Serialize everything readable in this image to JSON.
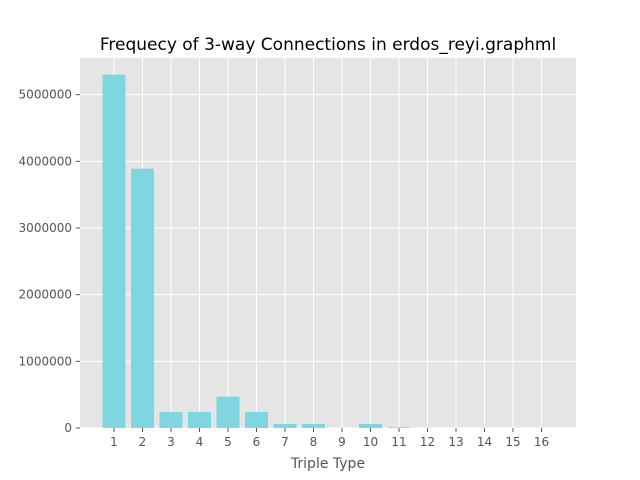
{
  "chart_data": {
    "type": "bar",
    "title": "Frequecy of 3-way Connections in erdos_reyi.graphml",
    "xlabel": "Triple Type",
    "ylabel": "",
    "categories": [
      "1",
      "2",
      "3",
      "4",
      "5",
      "6",
      "7",
      "8",
      "9",
      "10",
      "11",
      "12",
      "13",
      "14",
      "15",
      "16"
    ],
    "values": [
      5300000,
      3890000,
      240000,
      240000,
      470000,
      240000,
      60000,
      60000,
      0,
      60000,
      10000,
      0,
      0,
      0,
      0,
      0
    ],
    "ylim": [
      0,
      5550000
    ],
    "yticks": [
      0,
      1000000,
      2000000,
      3000000,
      4000000,
      5000000
    ],
    "ytick_labels": [
      "0",
      "1000000",
      "2000000",
      "3000000",
      "4000000",
      "5000000"
    ],
    "grid": true,
    "colors": {
      "bar": "#7fd6e0",
      "plot_background": "#e5e5e5",
      "grid": "#ffffff",
      "tick_text": "#555555"
    }
  }
}
